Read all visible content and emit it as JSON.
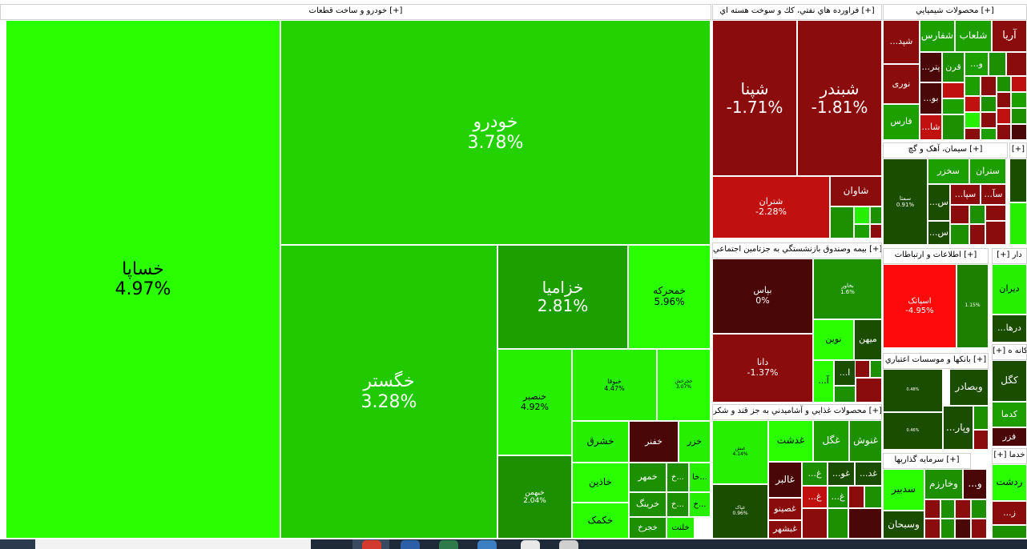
{
  "chart_data": {
    "type": "treemap",
    "sectors": [
      {
        "name": "خودرو و ساخت قطعات [+]",
        "tiles": [
          {
            "s": "خساپا",
            "c": "4.97%"
          },
          {
            "s": "خودرو",
            "c": "3.78%"
          },
          {
            "s": "خگستر",
            "c": "3.28%"
          },
          {
            "s": "خزامیا",
            "c": "2.81%"
          },
          {
            "s": "خمحرکه",
            "c": "5.96%"
          },
          {
            "s": "خنصیر",
            "c": "4.92%"
          },
          {
            "s": "خبوقا",
            "c": "4.47%"
          },
          {
            "s": "خچرخش",
            "c": "3.07%"
          },
          {
            "s": "خبهمن",
            "c": "2.04%"
          },
          {
            "s": "خشرق",
            "c": ""
          },
          {
            "s": "خفنر",
            "c": ""
          },
          {
            "s": "خزر",
            "c": ""
          },
          {
            "s": "خاذین",
            "c": ""
          },
          {
            "s": "خمهر",
            "c": ""
          },
          {
            "s": "خ...",
            "c": ""
          },
          {
            "s": "خا...",
            "c": ""
          },
          {
            "s": "خکمک",
            "c": ""
          },
          {
            "s": "خرینگ",
            "c": ""
          },
          {
            "s": "خ...",
            "c": ""
          },
          {
            "s": "خ...",
            "c": ""
          },
          {
            "s": "خجرخ",
            "c": ""
          },
          {
            "s": "خلنت",
            "c": ""
          }
        ]
      },
      {
        "name": "فراورده هاي نفتي، كك و سوخت هسته اي [+]",
        "tiles": [
          {
            "s": "شپنا",
            "c": "-1.71%"
          },
          {
            "s": "شبندر",
            "c": "-1.81%"
          },
          {
            "s": "شتران",
            "c": "-2.28%"
          },
          {
            "s": "شاوان",
            "c": ""
          }
        ]
      },
      {
        "name": "محصولات شيميايي [+]",
        "tiles": [
          {
            "s": "آریا",
            "c": ""
          },
          {
            "s": "شلعاب",
            "c": ""
          },
          {
            "s": "شفارس",
            "c": ""
          },
          {
            "s": "...شپد",
            "c": ""
          },
          {
            "s": "...پتر",
            "c": ""
          },
          {
            "s": "قرن",
            "c": ""
          },
          {
            "s": "...و",
            "c": ""
          },
          {
            "s": "نوری",
            "c": ""
          },
          {
            "s": "...بو",
            "c": ""
          },
          {
            "s": "فارس",
            "c": ""
          },
          {
            "s": "...شا",
            "c": ""
          }
        ]
      },
      {
        "name": "بیمه وصندوق بازنشستگي به جزتامين اجتماعي [+]",
        "tiles": [
          {
            "s": "بپاس",
            "c": "0%"
          },
          {
            "s": "بخاور",
            "c": "1.6%"
          },
          {
            "s": "دانا",
            "c": "-1.37%"
          },
          {
            "s": "نوین",
            "c": ""
          },
          {
            "s": "میهن",
            "c": ""
          },
          {
            "s": "...ا",
            "c": ""
          },
          {
            "s": "...آ",
            "c": ""
          }
        ]
      },
      {
        "name": "سیمان، آهک و گچ [+]",
        "tiles": [
          {
            "s": "سمتا",
            "c": "0.91%"
          },
          {
            "s": "سخزر",
            "c": ""
          },
          {
            "s": "ستران",
            "c": ""
          },
          {
            "s": "...سپا",
            "c": ""
          },
          {
            "s": "...سآ",
            "c": ""
          },
          {
            "s": "...س",
            "c": ""
          },
          {
            "s": "...س",
            "c": ""
          }
        ]
      },
      {
        "name": "[+]",
        "tiles": []
      },
      {
        "name": "محصولات غذايي و آشاميدني به جز قند و شكر [+]",
        "tiles": [
          {
            "s": "غبش",
            "c": "4.14%"
          },
          {
            "s": "غدشت",
            "c": ""
          },
          {
            "s": "غگل",
            "c": ""
          },
          {
            "s": "غنوش",
            "c": ""
          },
          {
            "s": "غالبر",
            "c": ""
          },
          {
            "s": "...غ",
            "c": ""
          },
          {
            "s": "...غو",
            "c": ""
          },
          {
            "s": "...غد",
            "c": ""
          },
          {
            "s": "غپاک",
            "c": "0.96%"
          },
          {
            "s": "غصینو",
            "c": ""
          },
          {
            "s": "...غ",
            "c": ""
          },
          {
            "s": "...غ",
            "c": ""
          },
          {
            "s": "غبشهر",
            "c": ""
          }
        ]
      },
      {
        "name": "اطلاعات و ارتباطات [+]",
        "tiles": [
          {
            "s": "اسپاتک",
            "c": "-4.95%"
          },
          {
            "s": "",
            "c": "1.15%"
          }
        ]
      },
      {
        "name": "بانکها و موسسات اعتباري [+]",
        "tiles": [
          {
            "s": "وبصادر",
            "c": ""
          },
          {
            "s": "...وپار",
            "c": ""
          },
          {
            "s": "",
            "c": "0.48%"
          },
          {
            "s": "",
            "c": "0.46%"
          }
        ]
      },
      {
        "name": "سرمایه گذاريها [+]",
        "tiles": [
          {
            "s": "سدبیر",
            "c": ""
          },
          {
            "s": "وخارزم",
            "c": ""
          },
          {
            "s": "...و",
            "c": ""
          },
          {
            "s": "وسبحان",
            "c": ""
          }
        ]
      },
      {
        "name": "[+] دار",
        "tiles": [
          {
            "s": "دیران",
            "c": ""
          },
          {
            "s": "...درها",
            "c": ""
          }
        ]
      },
      {
        "name": "[+] كانه ه",
        "tiles": [
          {
            "s": "کگل",
            "c": ""
          },
          {
            "s": "کدما",
            "c": ""
          },
          {
            "s": "فزر",
            "c": ""
          }
        ]
      },
      {
        "name": "[+] خدما",
        "tiles": [
          {
            "s": "ردشت",
            "c": ""
          },
          {
            "s": "...ز",
            "c": ""
          }
        ]
      }
    ]
  }
}
